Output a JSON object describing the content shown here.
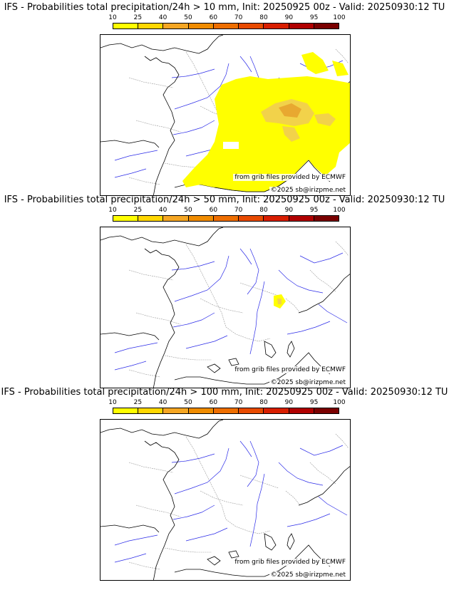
{
  "panels": [
    {
      "title": "IFS - Probabilities total precipitation/24h > 10 mm, Init: 20250925 00z - Valid: 20250930:12 TU",
      "source_label": "from grib files provided by ECMWF",
      "copyright_label": "©2025 sb@irizpme.net"
    },
    {
      "title": "IFS - Probabilities total precipitation/24h > 50 mm, Init: 20250925 00z - Valid: 20250930:12 TU",
      "source_label": "from grib files provided by ECMWF",
      "copyright_label": "©2025 sb@irizpme.net"
    },
    {
      "title": "IFS - Probabilities total precipitation/24h > 100 mm, Init: 20250925 00z - Valid: 20250930:12 TU",
      "source_label": "from grib files provided by ECMWF",
      "copyright_label": "©2025 sb@irizpme.net"
    }
  ],
  "legend": {
    "ticks": [
      "10",
      "25",
      "40",
      "50",
      "60",
      "70",
      "80",
      "90",
      "95",
      "100"
    ],
    "colors": [
      "#ffff00",
      "#ffd700",
      "#f5a623",
      "#f08c00",
      "#ee6e00",
      "#e84a00",
      "#d81e00",
      "#b00000",
      "#7a0000"
    ]
  },
  "colors": {
    "coastline": "#000000",
    "rivers": "#2a2ae8",
    "borders": "#9a9a9a",
    "prob_low": "#ffff00",
    "prob_mid": "#f2d24a",
    "prob_high": "#e8a830"
  }
}
